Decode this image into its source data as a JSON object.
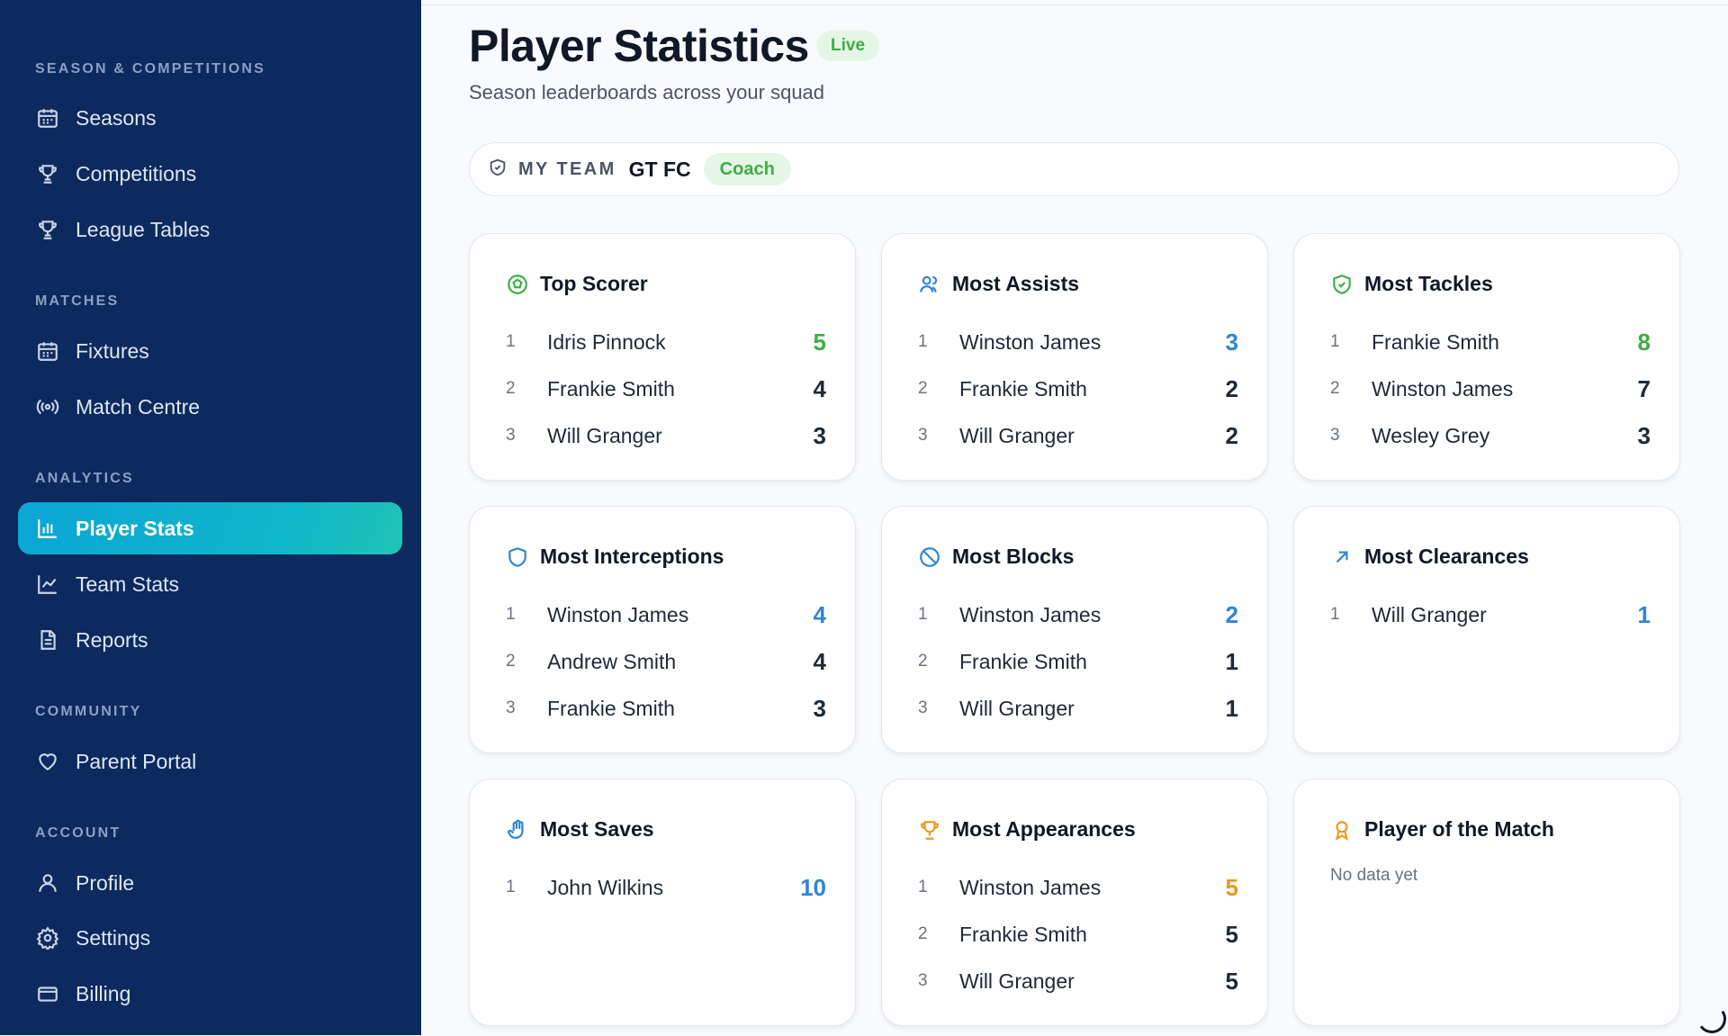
{
  "colors": {
    "sidebar_bg": "#0c2a5e",
    "active_gradient": [
      "#0ba6d6",
      "#20c4b4"
    ],
    "green": "#3dae46",
    "blue": "#2f84d6",
    "orange": "#e89a1c"
  },
  "sidebar": {
    "sections": [
      {
        "label": "SEASON & COMPETITIONS",
        "items": [
          {
            "label": "Seasons",
            "icon": "calendar-icon"
          },
          {
            "label": "Competitions",
            "icon": "trophy-icon"
          },
          {
            "label": "League Tables",
            "icon": "trophy-icon"
          }
        ]
      },
      {
        "label": "MATCHES",
        "items": [
          {
            "label": "Fixtures",
            "icon": "calendar-icon"
          },
          {
            "label": "Match Centre",
            "icon": "broadcast-icon"
          }
        ]
      },
      {
        "label": "ANALYTICS",
        "items": [
          {
            "label": "Player Stats",
            "icon": "bar-chart-icon",
            "active": true
          },
          {
            "label": "Team Stats",
            "icon": "line-chart-icon"
          },
          {
            "label": "Reports",
            "icon": "document-icon"
          }
        ]
      },
      {
        "label": "COMMUNITY",
        "items": [
          {
            "label": "Parent Portal",
            "icon": "heart-icon"
          }
        ]
      },
      {
        "label": "ACCOUNT",
        "items": [
          {
            "label": "Profile",
            "icon": "user-icon"
          },
          {
            "label": "Settings",
            "icon": "gear-icon"
          },
          {
            "label": "Billing",
            "icon": "credit-card-icon"
          }
        ]
      }
    ]
  },
  "header": {
    "title": "Player Statistics",
    "badge": "Live",
    "subtitle": "Season leaderboards across your squad"
  },
  "team_bar": {
    "label": "MY TEAM",
    "team": "GT FC",
    "role": "Coach"
  },
  "cards": [
    {
      "title": "Top Scorer",
      "icon": "soccer-ball-icon",
      "accent": "green",
      "rows": [
        {
          "rank": "1",
          "name": "Idris Pinnock",
          "value": "5"
        },
        {
          "rank": "2",
          "name": "Frankie Smith",
          "value": "4"
        },
        {
          "rank": "3",
          "name": "Will Granger",
          "value": "3"
        }
      ]
    },
    {
      "title": "Most Assists",
      "icon": "users-icon",
      "accent": "blue",
      "rows": [
        {
          "rank": "1",
          "name": "Winston James",
          "value": "3"
        },
        {
          "rank": "2",
          "name": "Frankie Smith",
          "value": "2"
        },
        {
          "rank": "3",
          "name": "Will Granger",
          "value": "2"
        }
      ]
    },
    {
      "title": "Most Tackles",
      "icon": "shield-check-icon",
      "accent": "green",
      "rows": [
        {
          "rank": "1",
          "name": "Frankie Smith",
          "value": "8"
        },
        {
          "rank": "2",
          "name": "Winston James",
          "value": "7"
        },
        {
          "rank": "3",
          "name": "Wesley Grey",
          "value": "3"
        }
      ]
    },
    {
      "title": "Most Interceptions",
      "icon": "shield-icon",
      "accent": "blue",
      "rows": [
        {
          "rank": "1",
          "name": "Winston James",
          "value": "4"
        },
        {
          "rank": "2",
          "name": "Andrew Smith",
          "value": "4"
        },
        {
          "rank": "3",
          "name": "Frankie Smith",
          "value": "3"
        }
      ]
    },
    {
      "title": "Most Blocks",
      "icon": "ban-icon",
      "accent": "blue",
      "rows": [
        {
          "rank": "1",
          "name": "Winston James",
          "value": "2"
        },
        {
          "rank": "2",
          "name": "Frankie Smith",
          "value": "1"
        },
        {
          "rank": "3",
          "name": "Will Granger",
          "value": "1"
        }
      ]
    },
    {
      "title": "Most Clearances",
      "icon": "arrow-up-right-icon",
      "accent": "blue",
      "rows": [
        {
          "rank": "1",
          "name": "Will Granger",
          "value": "1"
        }
      ]
    },
    {
      "title": "Most Saves",
      "icon": "hand-icon",
      "accent": "blue",
      "rows": [
        {
          "rank": "1",
          "name": "John Wilkins",
          "value": "10"
        }
      ]
    },
    {
      "title": "Most Appearances",
      "icon": "trophy-icon",
      "accent": "orange",
      "rows": [
        {
          "rank": "1",
          "name": "Winston James",
          "value": "5"
        },
        {
          "rank": "2",
          "name": "Frankie Smith",
          "value": "5"
        },
        {
          "rank": "3",
          "name": "Will Granger",
          "value": "5"
        }
      ]
    },
    {
      "title": "Player of the Match",
      "icon": "award-icon",
      "accent": "orange",
      "rows": [],
      "empty_text": "No data yet"
    }
  ]
}
